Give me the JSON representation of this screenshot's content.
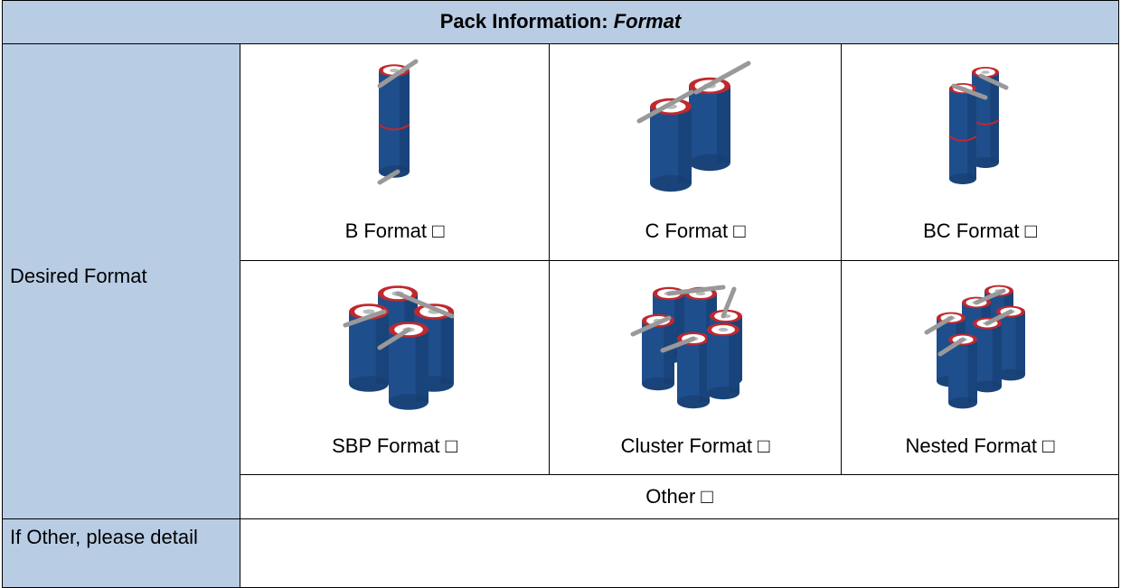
{
  "header": {
    "title": "Pack Information:",
    "title_emphasis": "Format"
  },
  "desired_format": {
    "label": "Desired Format",
    "options": [
      "B Format □",
      "C Format □",
      "BC Format □",
      "SBP Format □",
      "Cluster Format □",
      "Nested Format □"
    ],
    "other": "Other □"
  },
  "other_detail": {
    "label": "If Other, please detail"
  }
}
